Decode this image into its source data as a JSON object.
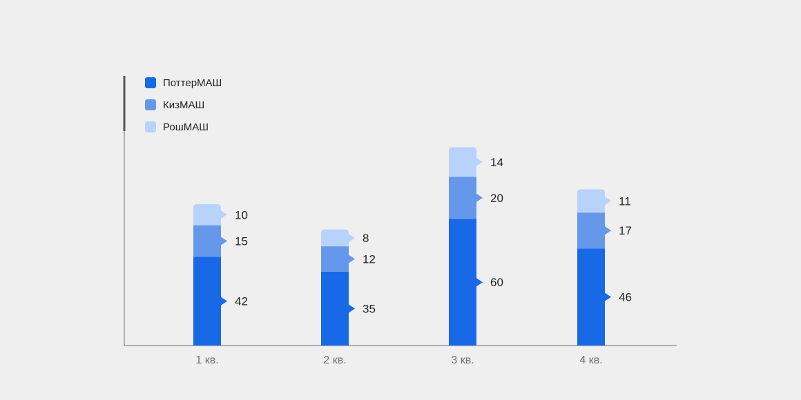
{
  "chart_data": {
    "type": "bar",
    "stacked": true,
    "categories": [
      "1 кв.",
      "2 кв.",
      "3 кв.",
      "4 кв."
    ],
    "series": [
      {
        "name": "ПоттерМАШ",
        "values": [
          42,
          35,
          60,
          46
        ],
        "color": "#1769e8"
      },
      {
        "name": "КизМАШ",
        "values": [
          15,
          12,
          20,
          17
        ],
        "color": "#6598ea"
      },
      {
        "name": "РошМАШ",
        "values": [
          10,
          8,
          14,
          11
        ],
        "color": "#b8d3fb"
      }
    ],
    "legend_position": "top-left",
    "grid": false,
    "xlabel": "",
    "ylabel": "",
    "ylim": [
      0,
      100
    ]
  }
}
